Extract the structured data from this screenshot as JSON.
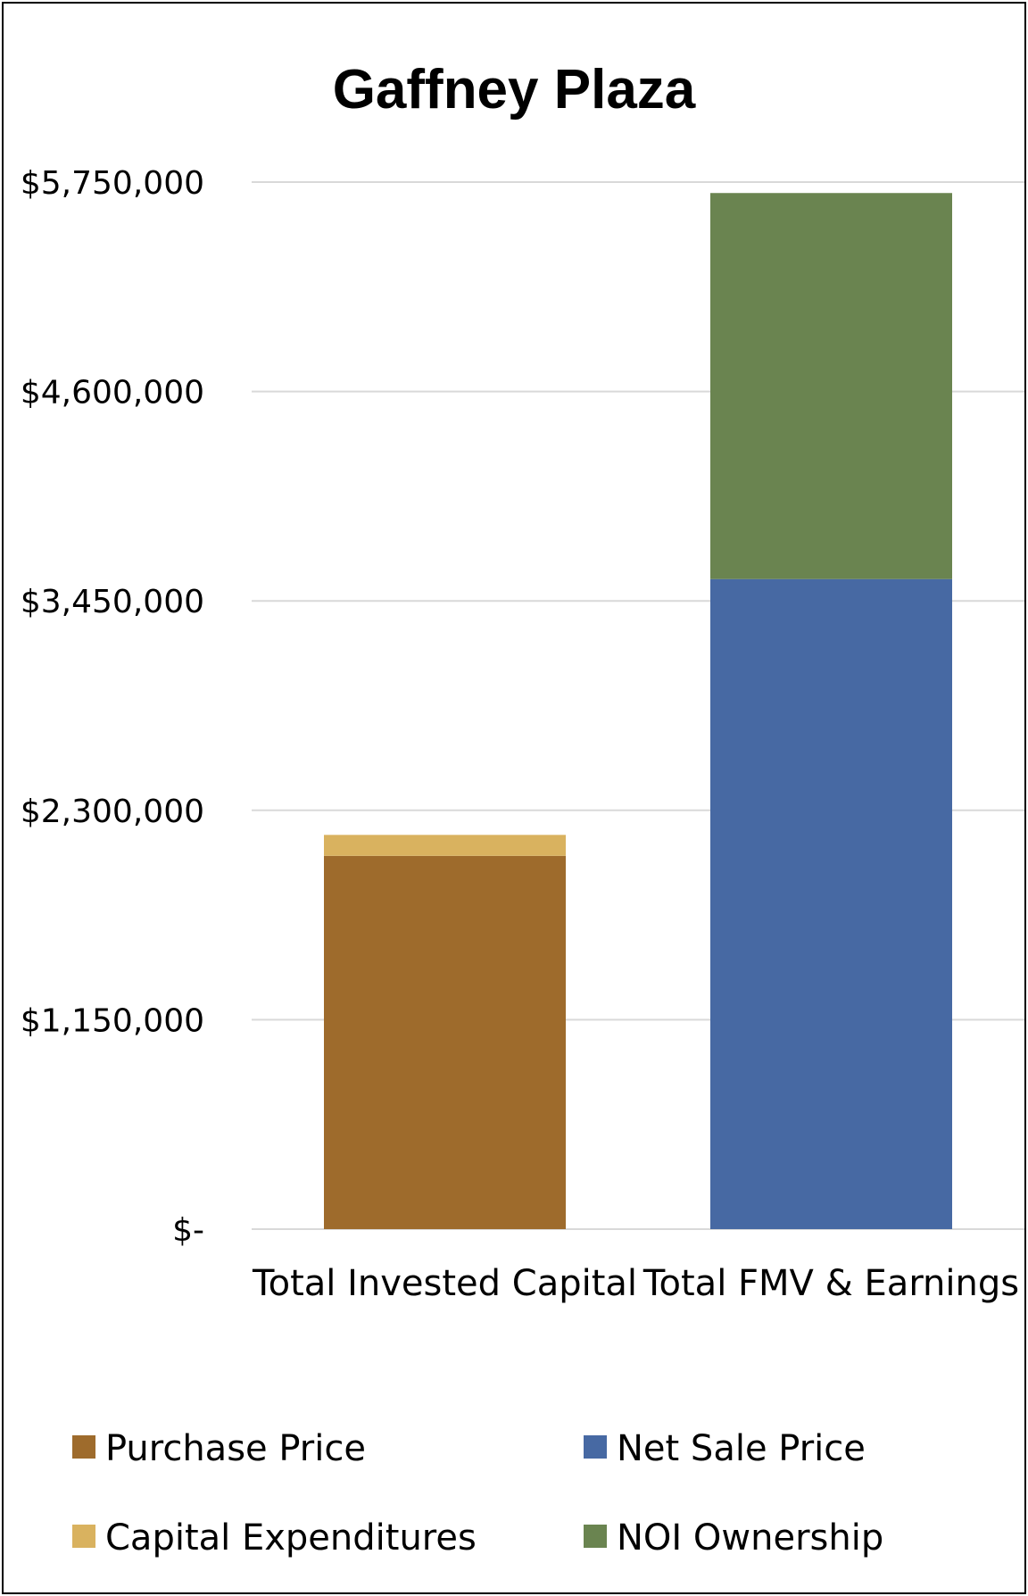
{
  "chart_data": {
    "type": "bar",
    "stacked": true,
    "title": "Gaffney Plaza",
    "xlabel": "",
    "ylabel": "",
    "categories": [
      "Total Invested Capital",
      "Total FMV & Earnings"
    ],
    "ylim": [
      0,
      5750000
    ],
    "yticks": [
      0,
      1150000,
      2300000,
      3450000,
      4600000,
      5750000
    ],
    "ytick_labels": [
      "$-",
      "$1,150,000",
      "$2,300,000",
      "$3,450,000",
      "$4,600,000",
      "$5,750,000"
    ],
    "grid": true,
    "legend_position": "bottom",
    "series": [
      {
        "name": "Purchase Price",
        "color": "#9E6B2C",
        "values": [
          2050000,
          0
        ]
      },
      {
        "name": "Capital Expenditures",
        "color": "#D9B25F",
        "values": [
          115000,
          0
        ]
      },
      {
        "name": "Net Sale Price",
        "color": "#4769A3",
        "values": [
          0,
          3570000
        ]
      },
      {
        "name": "NOI Ownership",
        "color": "#6A8450",
        "values": [
          0,
          2120000
        ]
      }
    ],
    "legend_order": [
      "Purchase Price",
      "Net Sale Price",
      "Capital Expenditures",
      "NOI Ownership"
    ]
  }
}
